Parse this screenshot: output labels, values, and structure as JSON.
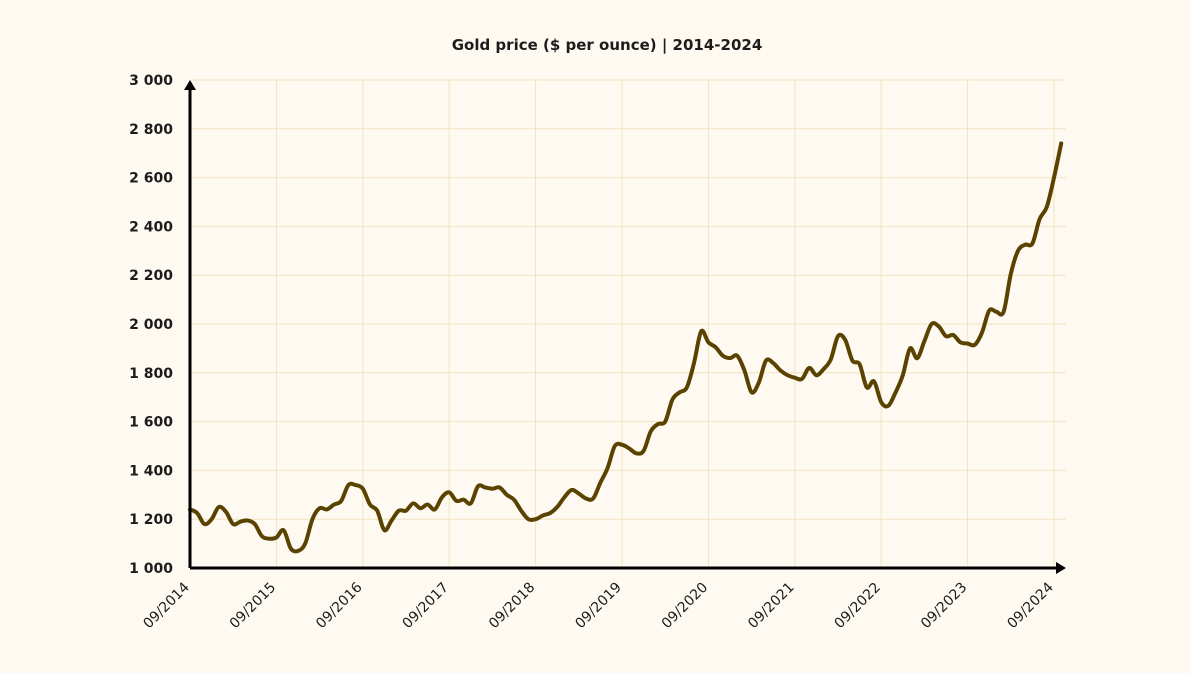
{
  "chart_data": {
    "type": "line",
    "title": "Gold price ($ per ounce) | 2014-2024",
    "xlabel": "",
    "ylabel": "",
    "x_tick_labels": [
      "09/2014",
      "09/2015",
      "09/2016",
      "09/2017",
      "09/2018",
      "09/2019",
      "09/2020",
      "09/2021",
      "09/2022",
      "09/2023",
      "09/2024"
    ],
    "y_tick_labels": [
      "1 000",
      "1 200",
      "1 400",
      "1 600",
      "1 800",
      "2 000",
      "2 200",
      "2 400",
      "2 600",
      "2 800",
      "3 000"
    ],
    "y_ticks": [
      1000,
      1200,
      1400,
      1600,
      1800,
      2000,
      2200,
      2400,
      2600,
      2800,
      3000
    ],
    "ylim": [
      1000,
      3000
    ],
    "xlim": [
      "09/2014",
      "10/2024"
    ],
    "grid": true,
    "legend": "none",
    "colors": {
      "background": "#fefaf2",
      "line": "#5a4300",
      "grid": "#f2e3bf",
      "axis": "#000000"
    },
    "series": [
      {
        "x": [
          "09/2014",
          "10/2014",
          "11/2014",
          "12/2014",
          "01/2015",
          "02/2015",
          "03/2015",
          "04/2015",
          "05/2015",
          "06/2015",
          "07/2015",
          "08/2015",
          "09/2015",
          "10/2015",
          "11/2015",
          "12/2015",
          "01/2016",
          "02/2016",
          "03/2016",
          "04/2016",
          "05/2016",
          "06/2016",
          "07/2016",
          "08/2016",
          "09/2016",
          "10/2016",
          "11/2016",
          "12/2016",
          "01/2017",
          "02/2017",
          "03/2017",
          "04/2017",
          "05/2017",
          "06/2017",
          "07/2017",
          "08/2017",
          "09/2017",
          "10/2017",
          "11/2017",
          "12/2017",
          "01/2018",
          "02/2018",
          "03/2018",
          "04/2018",
          "05/2018",
          "06/2018",
          "07/2018",
          "08/2018",
          "09/2018",
          "10/2018",
          "11/2018",
          "12/2018",
          "01/2019",
          "02/2019",
          "03/2019",
          "04/2019",
          "05/2019",
          "06/2019",
          "07/2019",
          "08/2019",
          "09/2019",
          "10/2019",
          "11/2019",
          "12/2019",
          "01/2020",
          "02/2020",
          "03/2020",
          "04/2020",
          "05/2020",
          "06/2020",
          "07/2020",
          "08/2020",
          "09/2020",
          "10/2020",
          "11/2020",
          "12/2020",
          "01/2021",
          "02/2021",
          "03/2021",
          "04/2021",
          "05/2021",
          "06/2021",
          "07/2021",
          "08/2021",
          "09/2021",
          "10/2021",
          "11/2021",
          "12/2021",
          "01/2022",
          "02/2022",
          "03/2022",
          "04/2022",
          "05/2022",
          "06/2022",
          "07/2022",
          "08/2022",
          "09/2022",
          "10/2022",
          "11/2022",
          "12/2022",
          "01/2023",
          "02/2023",
          "03/2023",
          "04/2023",
          "05/2023",
          "06/2023",
          "07/2023",
          "08/2023",
          "09/2023",
          "10/2023",
          "11/2023",
          "12/2023",
          "01/2024",
          "02/2024",
          "03/2024",
          "04/2024",
          "05/2024",
          "06/2024",
          "07/2024",
          "08/2024",
          "09/2024",
          "10/2024"
        ],
        "values": [
          1240,
          1225,
          1180,
          1200,
          1250,
          1230,
          1180,
          1190,
          1195,
          1180,
          1130,
          1120,
          1125,
          1155,
          1080,
          1070,
          1100,
          1200,
          1245,
          1240,
          1260,
          1275,
          1340,
          1340,
          1325,
          1260,
          1235,
          1155,
          1195,
          1235,
          1235,
          1265,
          1245,
          1260,
          1240,
          1290,
          1310,
          1275,
          1280,
          1265,
          1335,
          1330,
          1325,
          1330,
          1300,
          1280,
          1235,
          1200,
          1200,
          1215,
          1225,
          1250,
          1290,
          1320,
          1305,
          1285,
          1285,
          1350,
          1410,
          1500,
          1505,
          1490,
          1470,
          1480,
          1560,
          1590,
          1600,
          1690,
          1720,
          1740,
          1840,
          1970,
          1925,
          1905,
          1870,
          1860,
          1870,
          1810,
          1720,
          1760,
          1850,
          1840,
          1810,
          1790,
          1780,
          1775,
          1820,
          1790,
          1815,
          1855,
          1950,
          1935,
          1850,
          1835,
          1740,
          1765,
          1680,
          1665,
          1720,
          1790,
          1900,
          1860,
          1930,
          2000,
          1990,
          1950,
          1955,
          1925,
          1920,
          1915,
          1965,
          2055,
          2050,
          2050,
          2205,
          2300,
          2325,
          2330,
          2430,
          2480,
          2600,
          2740
        ]
      }
    ]
  }
}
